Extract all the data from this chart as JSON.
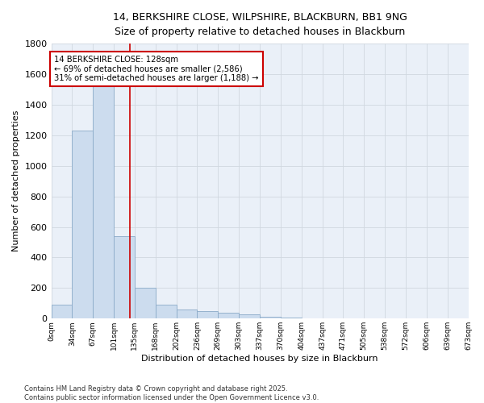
{
  "title_line1": "14, BERKSHIRE CLOSE, WILPSHIRE, BLACKBURN, BB1 9NG",
  "title_line2": "Size of property relative to detached houses in Blackburn",
  "xlabel": "Distribution of detached houses by size in Blackburn",
  "ylabel": "Number of detached properties",
  "bar_color": "#ccdcee",
  "bar_edge_color": "#8aaac8",
  "bar_heights": [
    90,
    1230,
    1650,
    540,
    200,
    90,
    60,
    50,
    40,
    30,
    10,
    5,
    3,
    2,
    1,
    1,
    0,
    0,
    0,
    0
  ],
  "bin_labels": [
    "0sqm",
    "34sqm",
    "67sqm",
    "101sqm",
    "135sqm",
    "168sqm",
    "202sqm",
    "236sqm",
    "269sqm",
    "303sqm",
    "337sqm",
    "370sqm",
    "404sqm",
    "437sqm",
    "471sqm",
    "505sqm",
    "538sqm",
    "572sqm",
    "606sqm",
    "639sqm",
    "673sqm"
  ],
  "ylim": [
    0,
    1800
  ],
  "yticks": [
    0,
    200,
    400,
    600,
    800,
    1000,
    1200,
    1400,
    1600,
    1800
  ],
  "red_line_x": 3.78,
  "annotation_text": "14 BERKSHIRE CLOSE: 128sqm\n← 69% of detached houses are smaller (2,586)\n31% of semi-detached houses are larger (1,188) →",
  "annotation_box_color": "#ffffff",
  "annotation_edge_color": "#cc0000",
  "footer_text": "Contains HM Land Registry data © Crown copyright and database right 2025.\nContains public sector information licensed under the Open Government Licence v3.0.",
  "grid_color": "#d0d8e0",
  "background_color": "#ffffff",
  "plot_bg_color": "#eaf0f8"
}
